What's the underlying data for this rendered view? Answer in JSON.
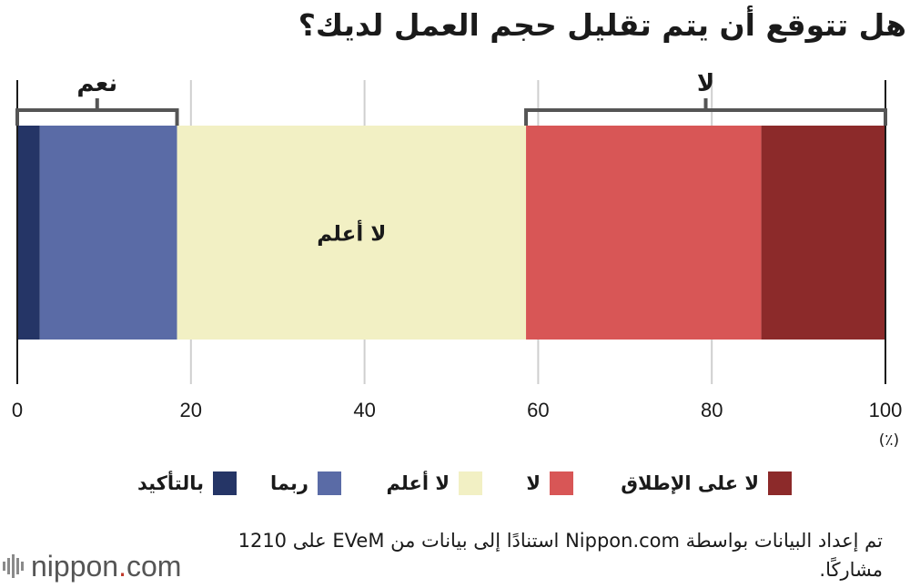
{
  "title": "هل تتوقع أن يتم تقليل حجم العمل لديك؟",
  "chart_data": {
    "type": "bar",
    "orientation": "horizontal-stacked",
    "unit": "(٪)",
    "xlim": [
      0,
      100
    ],
    "ticks": [
      "0",
      "20",
      "40",
      "60",
      "80",
      "100"
    ],
    "tick_values": [
      0,
      20,
      40,
      60,
      80,
      100
    ],
    "grid": true,
    "segments": [
      {
        "name": "بالتأكيد",
        "value": 2.6,
        "color": "#253566",
        "label": ""
      },
      {
        "name": "ربما",
        "value": 15.8,
        "color": "#5a6ba6",
        "label": ""
      },
      {
        "name": "لا أعلم",
        "value": 40.2,
        "color": "#f2f0c4",
        "label": "لا أعلم"
      },
      {
        "name": "لا",
        "value": 27.1,
        "color": "#d85656",
        "label": ""
      },
      {
        "name": "لا على الإطلاق",
        "value": 14.3,
        "color": "#8c2a2a",
        "label": ""
      }
    ],
    "brackets": [
      {
        "label": "نعم",
        "from": 0,
        "to": 18.4
      },
      {
        "label": "لا",
        "from": 58.6,
        "to": 100
      }
    ]
  },
  "legend": [
    {
      "label": "لا على الإطلاق",
      "color": "#8c2a2a"
    },
    {
      "label": "لا",
      "color": "#d85656"
    },
    {
      "label": "لا أعلم",
      "color": "#f2f0c4"
    },
    {
      "label": "ربما",
      "color": "#5a6ba6"
    },
    {
      "label": "بالتأكيد",
      "color": "#253566"
    }
  ],
  "note": "تم إعداد البيانات بواسطة Nippon.com استنادًا إلى بيانات من EVeM على 1210 مشاركًا.",
  "logo": {
    "name": "nippon",
    "dot": ".",
    "tld": "com"
  }
}
